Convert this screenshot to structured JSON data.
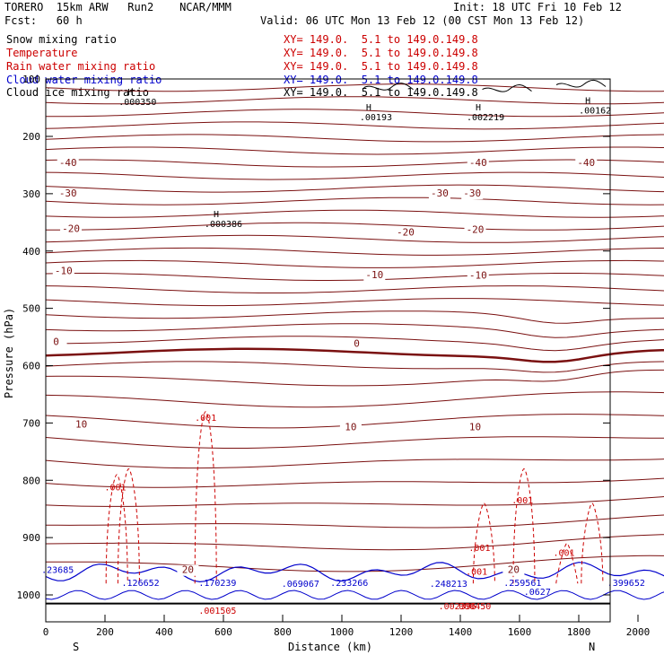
{
  "header": {
    "model": "TORERO  15km ARW   Run2    NCAR/MMM",
    "init": "Init: 18 UTC Fri 10 Feb 12",
    "fcst": "Fcst:   60 h",
    "valid": "Valid: 06 UTC Mon 13 Feb 12 (00 CST Mon 13 Feb 12)"
  },
  "legend": [
    {
      "label": "Snow mixing ratio",
      "xy": "XY= 149.0.  5.1 to 149.0.149.8",
      "color": "#000000"
    },
    {
      "label": "Temperature",
      "xy": "XY= 149.0.  5.1 to 149.0.149.8",
      "color": "#cc0000"
    },
    {
      "label": "Rain water mixing ratio",
      "xy": "XY= 149.0.  5.1 to 149.0.149.8",
      "color": "#cc0000"
    },
    {
      "label": "Cloud water mixing ratio",
      "xy": "XY= 149.0.  5.1 to 149.0.149.8",
      "color": "#0000cc"
    },
    {
      "label": "Cloud ice mixing ratio",
      "xy": "XY= 149.0.  5.1 to 149.0.149.8",
      "color": "#000000"
    }
  ],
  "chart_data": {
    "type": "cross-section contour",
    "xlabel": "Distance (km)",
    "ylabel": "Pressure (hPa)",
    "xlim": [
      0,
      2180
    ],
    "ylim": [
      1050,
      100
    ],
    "xticks": [
      "0",
      "200",
      "400",
      "600",
      "800",
      "1000",
      "1200",
      "1400",
      "1600",
      "1800",
      "2000"
    ],
    "xtick_values": [
      0,
      200,
      400,
      600,
      800,
      1000,
      1200,
      1400,
      1600,
      1800,
      2000
    ],
    "yticks": [
      "100",
      "200",
      "300",
      "400",
      "500",
      "600",
      "700",
      "800",
      "900",
      "1000"
    ],
    "ytick_values": [
      100,
      200,
      300,
      400,
      500,
      600,
      700,
      800,
      900,
      1000
    ],
    "left_end": "S",
    "right_end": "N",
    "temperature_labels": [
      {
        "text": "-40",
        "x": 75,
        "p": 252
      },
      {
        "text": "-40",
        "x": 1460,
        "p": 252
      },
      {
        "text": "-40",
        "x": 1825,
        "p": 252
      },
      {
        "text": "-30",
        "x": 75,
        "p": 305
      },
      {
        "text": "-30",
        "x": 1330,
        "p": 305
      },
      {
        "text": "-30",
        "x": 1440,
        "p": 305
      },
      {
        "text": "-20",
        "x": 85,
        "p": 367
      },
      {
        "text": "-20",
        "x": 1215,
        "p": 373
      },
      {
        "text": "-20",
        "x": 1450,
        "p": 368
      },
      {
        "text": "-10",
        "x": 60,
        "p": 440
      },
      {
        "text": "-10",
        "x": 1110,
        "p": 447
      },
      {
        "text": "-10",
        "x": 1460,
        "p": 448
      },
      {
        "text": "0",
        "x": 35,
        "p": 564
      },
      {
        "text": "0",
        "x": 1050,
        "p": 567
      },
      {
        "text": "10",
        "x": 120,
        "p": 708
      },
      {
        "text": "10",
        "x": 1030,
        "p": 713
      },
      {
        "text": "10",
        "x": 1450,
        "p": 713
      },
      {
        "text": "20",
        "x": 480,
        "p": 962
      },
      {
        "text": "20",
        "x": 1580,
        "p": 962
      }
    ],
    "rain_labels": [
      {
        "text": ".001",
        "x": 235,
        "p": 818
      },
      {
        "text": ".001",
        "x": 540,
        "p": 696
      },
      {
        "text": ".001",
        "x": 1610,
        "p": 840
      },
      {
        "text": ".001",
        "x": 1465,
        "p": 923
      },
      {
        "text": ".001",
        "x": 1750,
        "p": 932
      },
      {
        "text": ".001",
        "x": 1455,
        "p": 965
      },
      {
        "text": ".000450",
        "x": 1440,
        "p": 1025
      },
      {
        "text": ".002396",
        "x": 1390,
        "p": 1025
      },
      {
        "text": ".001505",
        "x": 580,
        "p": 1033
      }
    ],
    "cloud_water_maxima": [
      {
        "text": ".126652",
        "x": 320,
        "p": 984
      },
      {
        "text": ".170239",
        "x": 580,
        "p": 984
      },
      {
        "text": ".069067",
        "x": 860,
        "p": 986
      },
      {
        "text": ".233266",
        "x": 1025,
        "p": 984
      },
      {
        "text": ".248213",
        "x": 1360,
        "p": 986
      },
      {
        "text": ".259561",
        "x": 1610,
        "p": 984
      },
      {
        "text": ".399652",
        "x": 1960,
        "p": 984
      },
      {
        "text": ".23685",
        "x": 40,
        "p": 962
      },
      {
        "text": ".0627",
        "x": 1660,
        "p": 1000
      }
    ],
    "snow_ice_maxima": [
      {
        "text": ".000350",
        "x": 310,
        "p": 145
      },
      {
        "text": ".00193",
        "x": 1115,
        "p": 172
      },
      {
        "text": ".002219",
        "x": 1485,
        "p": 172
      },
      {
        "text": ".00162",
        "x": 1855,
        "p": 160
      },
      {
        "text": ".000386",
        "x": 600,
        "p": 358
      }
    ],
    "freezing_level_p": 570,
    "surface_p": 1015
  }
}
